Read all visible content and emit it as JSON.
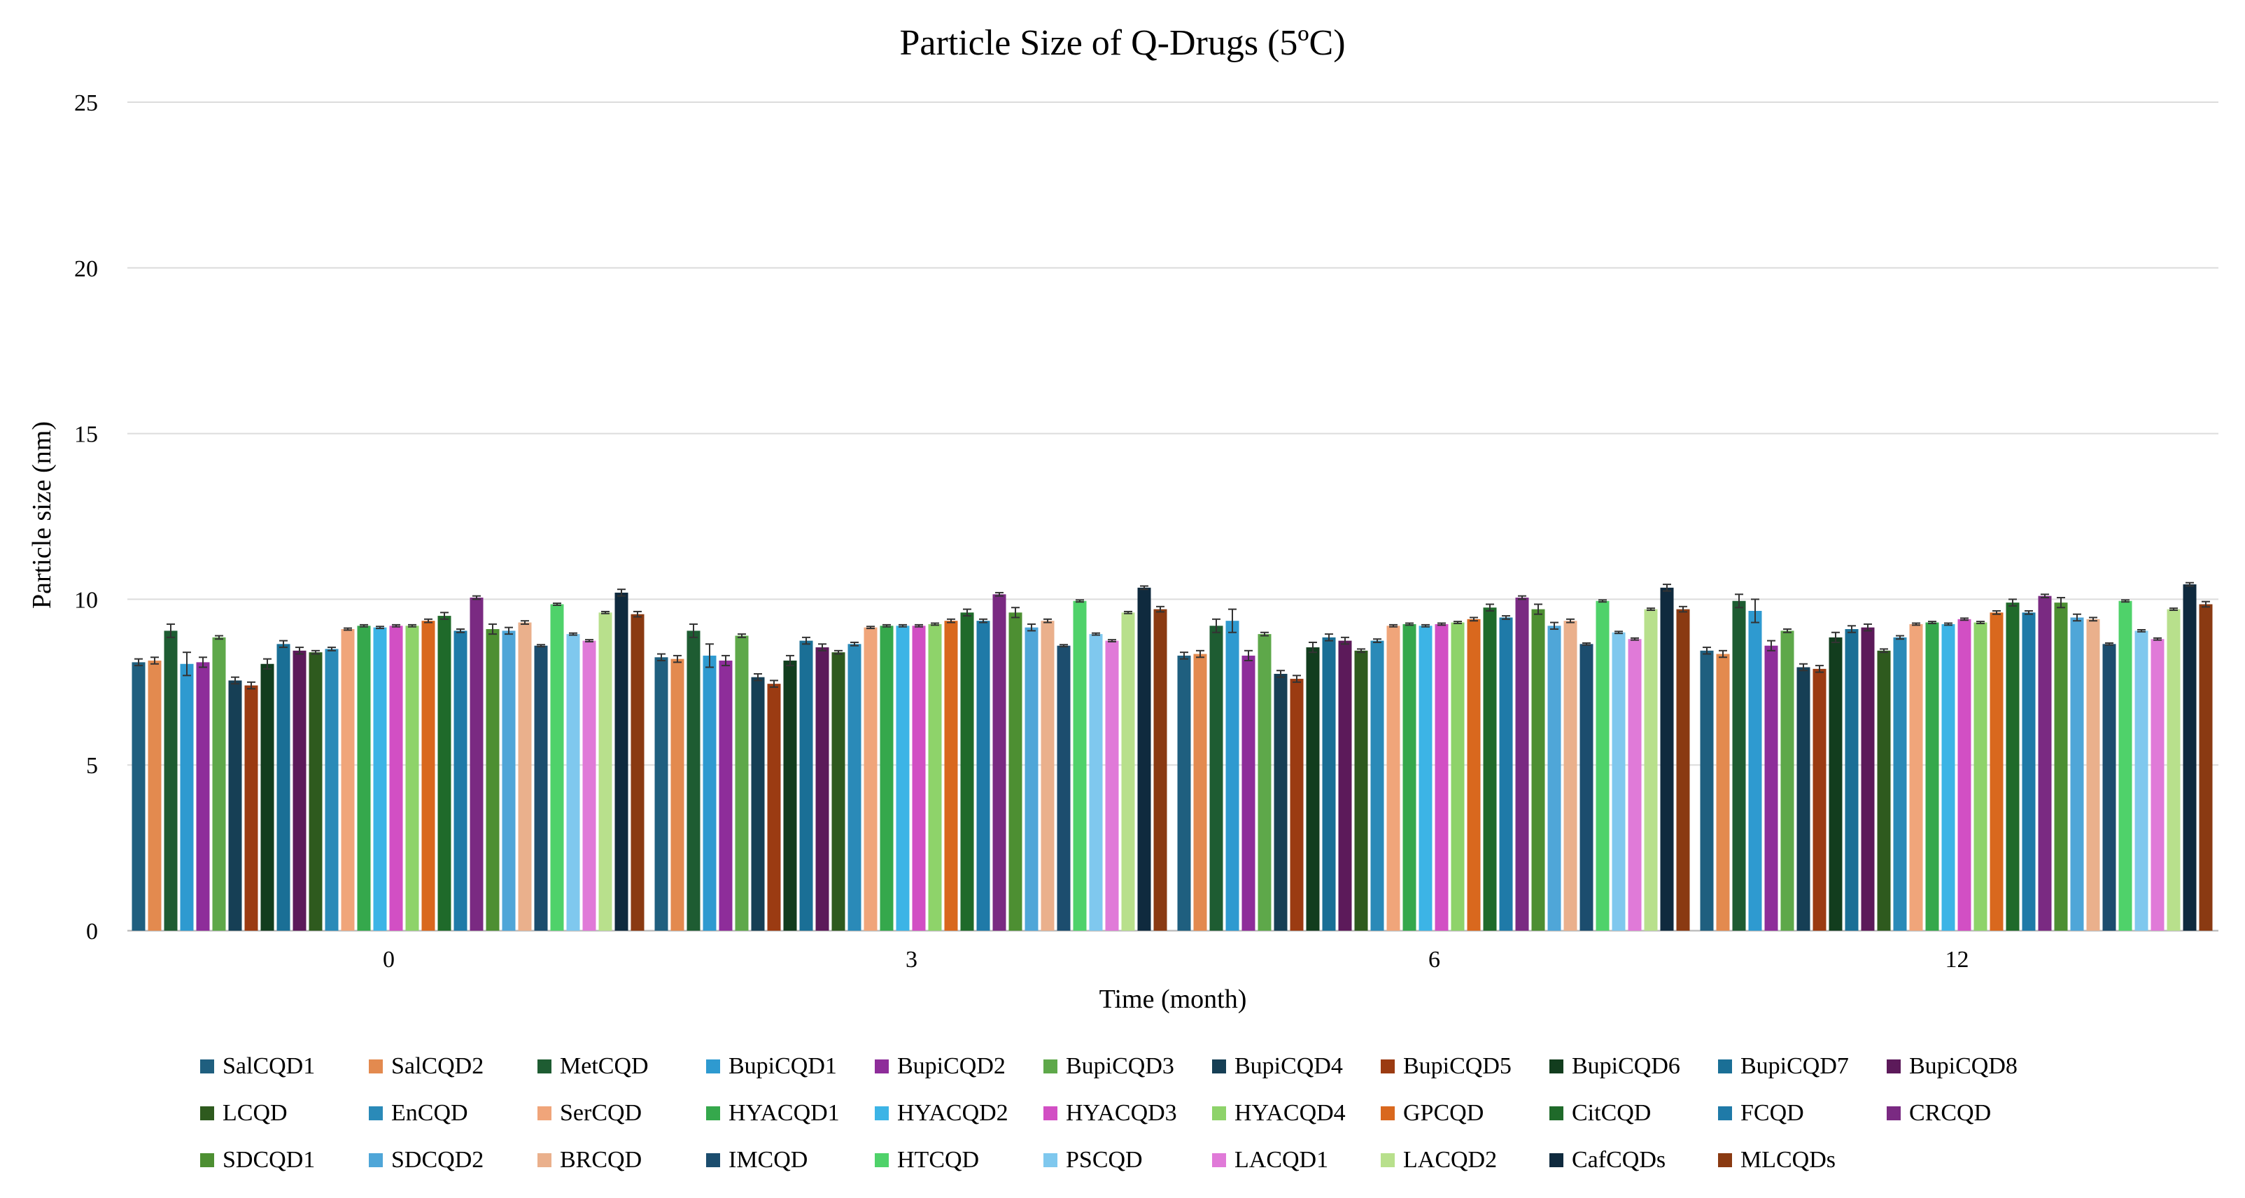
{
  "chart_data": {
    "type": "bar",
    "title": "Particle Size of Q-Drugs (5ºC)",
    "xlabel": "Time (month)",
    "ylabel": "Particle size (nm)",
    "categories": [
      "0",
      "3",
      "6",
      "12"
    ],
    "ylim": [
      0,
      25
    ],
    "yticks": [
      "0",
      "5",
      "10",
      "15",
      "20",
      "25"
    ],
    "grid": true,
    "legend_position": "bottom",
    "error_bars": true,
    "series": [
      {
        "name": "SalCQD1",
        "color": "#1f5f7f",
        "values": [
          8.1,
          8.25,
          8.3,
          8.45
        ],
        "errors": [
          0.1,
          0.1,
          0.1,
          0.1
        ]
      },
      {
        "name": "SalCQD2",
        "color": "#e38a4f",
        "values": [
          8.15,
          8.2,
          8.35,
          8.35
        ],
        "errors": [
          0.1,
          0.1,
          0.1,
          0.1
        ]
      },
      {
        "name": "MetCQD",
        "color": "#1e5c32",
        "values": [
          9.05,
          9.05,
          9.2,
          9.95
        ],
        "errors": [
          0.2,
          0.2,
          0.2,
          0.2
        ]
      },
      {
        "name": "BupiCQD1",
        "color": "#2e9ad0",
        "values": [
          8.05,
          8.3,
          9.35,
          9.65
        ],
        "errors": [
          0.35,
          0.35,
          0.35,
          0.35
        ]
      },
      {
        "name": "BupiCQD2",
        "color": "#8e2d9a",
        "values": [
          8.1,
          8.15,
          8.3,
          8.6
        ],
        "errors": [
          0.15,
          0.15,
          0.15,
          0.15
        ]
      },
      {
        "name": "BupiCQD3",
        "color": "#5ea84a",
        "values": [
          8.85,
          8.9,
          8.95,
          9.05
        ],
        "errors": [
          0.05,
          0.05,
          0.05,
          0.05
        ]
      },
      {
        "name": "BupiCQD4",
        "color": "#163f55",
        "values": [
          7.55,
          7.65,
          7.75,
          7.95
        ],
        "errors": [
          0.1,
          0.1,
          0.1,
          0.1
        ]
      },
      {
        "name": "BupiCQD5",
        "color": "#9b3b12",
        "values": [
          7.4,
          7.45,
          7.6,
          7.9
        ],
        "errors": [
          0.1,
          0.1,
          0.1,
          0.1
        ]
      },
      {
        "name": "BupiCQD6",
        "color": "#123d1e",
        "values": [
          8.05,
          8.15,
          8.55,
          8.85
        ],
        "errors": [
          0.15,
          0.15,
          0.15,
          0.15
        ]
      },
      {
        "name": "BupiCQD7",
        "color": "#1a6f96",
        "values": [
          8.65,
          8.75,
          8.85,
          9.1
        ],
        "errors": [
          0.1,
          0.1,
          0.1,
          0.1
        ]
      },
      {
        "name": "BupiCQD8",
        "color": "#5c1a5a",
        "values": [
          8.45,
          8.55,
          8.75,
          9.15
        ],
        "errors": [
          0.1,
          0.1,
          0.1,
          0.1
        ]
      },
      {
        "name": "LCQD",
        "color": "#2e5a1e",
        "values": [
          8.4,
          8.4,
          8.45,
          8.45
        ],
        "errors": [
          0.05,
          0.05,
          0.05,
          0.05
        ]
      },
      {
        "name": "EnCQD",
        "color": "#2a8ab8",
        "values": [
          8.5,
          8.65,
          8.75,
          8.85
        ],
        "errors": [
          0.05,
          0.05,
          0.05,
          0.05
        ]
      },
      {
        "name": "SerCQD",
        "color": "#f0a57a",
        "values": [
          9.1,
          9.15,
          9.2,
          9.25
        ],
        "errors": [
          0.03,
          0.03,
          0.03,
          0.03
        ]
      },
      {
        "name": "HYACQD1",
        "color": "#35a84c",
        "values": [
          9.2,
          9.2,
          9.25,
          9.3
        ],
        "errors": [
          0.03,
          0.03,
          0.03,
          0.03
        ]
      },
      {
        "name": "HYACQD2",
        "color": "#3cb4e6",
        "values": [
          9.15,
          9.2,
          9.2,
          9.25
        ],
        "errors": [
          0.03,
          0.03,
          0.03,
          0.03
        ]
      },
      {
        "name": "HYACQD3",
        "color": "#d24fc4",
        "values": [
          9.2,
          9.2,
          9.25,
          9.4
        ],
        "errors": [
          0.03,
          0.03,
          0.03,
          0.03
        ]
      },
      {
        "name": "HYACQD4",
        "color": "#8ed36a",
        "values": [
          9.2,
          9.25,
          9.3,
          9.3
        ],
        "errors": [
          0.03,
          0.03,
          0.03,
          0.03
        ]
      },
      {
        "name": "GPCQD",
        "color": "#d9681e",
        "values": [
          9.35,
          9.35,
          9.4,
          9.6
        ],
        "errors": [
          0.05,
          0.05,
          0.05,
          0.05
        ]
      },
      {
        "name": "CitCQD",
        "color": "#1f6a2a",
        "values": [
          9.5,
          9.6,
          9.75,
          9.9
        ],
        "errors": [
          0.1,
          0.1,
          0.1,
          0.1
        ]
      },
      {
        "name": "FCQD",
        "color": "#1f7aa8",
        "values": [
          9.05,
          9.35,
          9.45,
          9.6
        ],
        "errors": [
          0.05,
          0.05,
          0.05,
          0.05
        ]
      },
      {
        "name": "CRCQD",
        "color": "#7a2a82",
        "values": [
          10.05,
          10.15,
          10.05,
          10.1
        ],
        "errors": [
          0.05,
          0.05,
          0.05,
          0.05
        ]
      },
      {
        "name": "SDCQD1",
        "color": "#4d8f32",
        "values": [
          9.1,
          9.6,
          9.7,
          9.9
        ],
        "errors": [
          0.15,
          0.15,
          0.15,
          0.15
        ]
      },
      {
        "name": "SDCQD2",
        "color": "#4fa6d8",
        "values": [
          9.05,
          9.15,
          9.2,
          9.45
        ],
        "errors": [
          0.1,
          0.1,
          0.1,
          0.1
        ]
      },
      {
        "name": "BRCQD",
        "color": "#eab08c",
        "values": [
          9.3,
          9.35,
          9.35,
          9.4
        ],
        "errors": [
          0.05,
          0.05,
          0.05,
          0.05
        ]
      },
      {
        "name": "IMCQD",
        "color": "#1c4d6e",
        "values": [
          8.6,
          8.6,
          8.65,
          8.65
        ],
        "errors": [
          0.03,
          0.03,
          0.03,
          0.03
        ]
      },
      {
        "name": "HTCQD",
        "color": "#4fd26a",
        "values": [
          9.85,
          9.95,
          9.95,
          9.95
        ],
        "errors": [
          0.03,
          0.03,
          0.03,
          0.03
        ]
      },
      {
        "name": "PSCQD",
        "color": "#7fc8ee",
        "values": [
          8.95,
          8.95,
          9.0,
          9.05
        ],
        "errors": [
          0.03,
          0.03,
          0.03,
          0.03
        ]
      },
      {
        "name": "LACQD1",
        "color": "#e07ad8",
        "values": [
          8.75,
          8.75,
          8.8,
          8.8
        ],
        "errors": [
          0.03,
          0.03,
          0.03,
          0.03
        ]
      },
      {
        "name": "LACQD2",
        "color": "#b8e08c",
        "values": [
          9.6,
          9.6,
          9.7,
          9.7
        ],
        "errors": [
          0.03,
          0.03,
          0.03,
          0.03
        ]
      },
      {
        "name": "CafCQDs",
        "color": "#0f2a3e",
        "values": [
          10.2,
          10.35,
          10.35,
          10.45
        ],
        "errors": [
          0.1,
          0.05,
          0.1,
          0.05
        ]
      },
      {
        "name": "MLCQDs",
        "color": "#8a3a12",
        "values": [
          9.55,
          9.7,
          9.7,
          9.85
        ],
        "errors": [
          0.08,
          0.08,
          0.08,
          0.08
        ]
      }
    ]
  }
}
